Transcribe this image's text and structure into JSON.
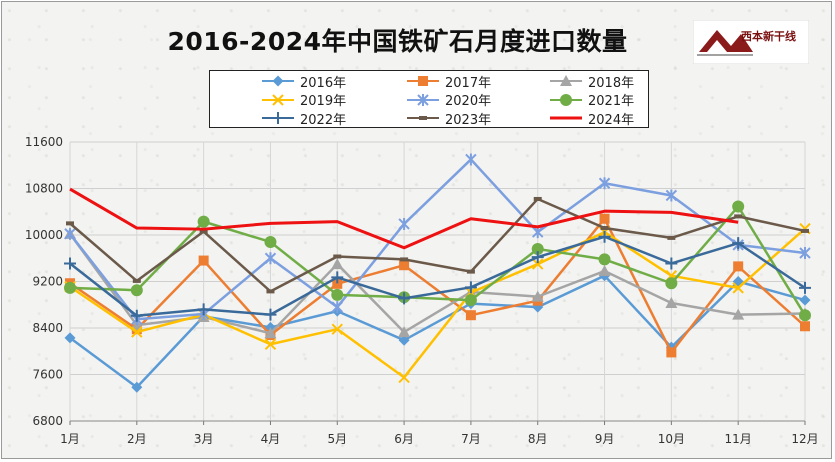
{
  "chart_data": {
    "type": "line",
    "title": "2016-2024年中国铁矿石月度进口数量",
    "xlabel": "",
    "ylabel": "",
    "ylim": [
      6800,
      11600
    ],
    "yticks": [
      6800,
      7600,
      8400,
      9200,
      10000,
      10800,
      11600
    ],
    "categories": [
      "1月",
      "2月",
      "3月",
      "4月",
      "5月",
      "6月",
      "7月",
      "8月",
      "9月",
      "10月",
      "11月",
      "12月"
    ],
    "series": [
      {
        "name": "2016年",
        "color": "#5b9bd5",
        "marker": "diamond",
        "values": [
          8230,
          7380,
          8600,
          8410,
          8690,
          8190,
          8820,
          8760,
          9300,
          8070,
          9200,
          8880
        ]
      },
      {
        "name": "2017年",
        "color": "#ed7d31",
        "marker": "square",
        "values": [
          9170,
          8380,
          9560,
          8280,
          9160,
          9480,
          8620,
          8870,
          10280,
          7980,
          9460,
          8430
        ]
      },
      {
        "name": "2018年",
        "color": "#a5a5a5",
        "marker": "triangle",
        "values": [
          10020,
          8450,
          8590,
          8310,
          9500,
          8330,
          9020,
          8940,
          9380,
          8830,
          8630,
          8650
        ]
      },
      {
        "name": "2019年",
        "color": "#ffc000",
        "marker": "x",
        "values": [
          9110,
          8330,
          8630,
          8120,
          8380,
          7550,
          9010,
          9500,
          10050,
          9300,
          9090,
          10110
        ]
      },
      {
        "name": "2020年",
        "color": "#7c9fe0",
        "marker": "star",
        "values": [
          10020,
          8550,
          8640,
          9600,
          8760,
          10190,
          11300,
          10050,
          10890,
          10680,
          9830,
          9690
        ]
      },
      {
        "name": "2021年",
        "color": "#70ad47",
        "marker": "circle",
        "values": [
          9090,
          9050,
          10230,
          9880,
          8970,
          8930,
          8880,
          9760,
          9580,
          9170,
          10490,
          8620
        ]
      },
      {
        "name": "2022年",
        "color": "#3a6a9a",
        "marker": "plus",
        "values": [
          9510,
          8610,
          8720,
          8630,
          9270,
          8910,
          9100,
          9620,
          9970,
          9510,
          9860,
          9090
        ]
      },
      {
        "name": "2023年",
        "color": "#6b5a4a",
        "marker": "dash",
        "values": [
          10200,
          9210,
          10060,
          9030,
          9630,
          9580,
          9370,
          10620,
          10120,
          9950,
          10320,
          10070
        ]
      },
      {
        "name": "2024年",
        "color": "#ee1111",
        "marker": "none",
        "values": [
          10790,
          10120,
          10100,
          10200,
          10230,
          9780,
          10280,
          10140,
          10410,
          10390,
          10220,
          null
        ]
      }
    ]
  },
  "logo": {
    "text": "西本新干线"
  }
}
